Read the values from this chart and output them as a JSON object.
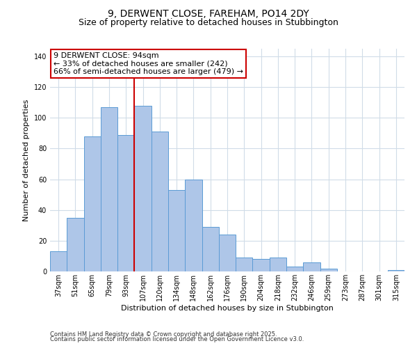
{
  "title": "9, DERWENT CLOSE, FAREHAM, PO14 2DY",
  "subtitle": "Size of property relative to detached houses in Stubbington",
  "xlabel": "Distribution of detached houses by size in Stubbington",
  "ylabel": "Number of detached properties",
  "bins": [
    "37sqm",
    "51sqm",
    "65sqm",
    "79sqm",
    "93sqm",
    "107sqm",
    "120sqm",
    "134sqm",
    "148sqm",
    "162sqm",
    "176sqm",
    "190sqm",
    "204sqm",
    "218sqm",
    "232sqm",
    "246sqm",
    "259sqm",
    "273sqm",
    "287sqm",
    "301sqm",
    "315sqm"
  ],
  "values": [
    13,
    35,
    88,
    107,
    89,
    108,
    91,
    53,
    60,
    29,
    24,
    9,
    8,
    9,
    3,
    6,
    2,
    0,
    0,
    0,
    1
  ],
  "bar_color": "#aec6e8",
  "bar_edge_color": "#5b9bd5",
  "vline_x_index": 4,
  "vline_color": "#cc0000",
  "annotation_line1": "9 DERWENT CLOSE: 94sqm",
  "annotation_line2": "← 33% of detached houses are smaller (242)",
  "annotation_line3": "66% of semi-detached houses are larger (479) →",
  "annotation_box_color": "#ffffff",
  "annotation_box_edge_color": "#cc0000",
  "ylim": [
    0,
    145
  ],
  "footnote1": "Contains HM Land Registry data © Crown copyright and database right 2025.",
  "footnote2": "Contains public sector information licensed under the Open Government Licence v3.0.",
  "background_color": "#ffffff",
  "grid_color": "#d0dce8",
  "title_fontsize": 10,
  "subtitle_fontsize": 9,
  "axis_label_fontsize": 8,
  "tick_fontsize": 7,
  "annotation_fontsize": 8,
  "footnote_fontsize": 6
}
